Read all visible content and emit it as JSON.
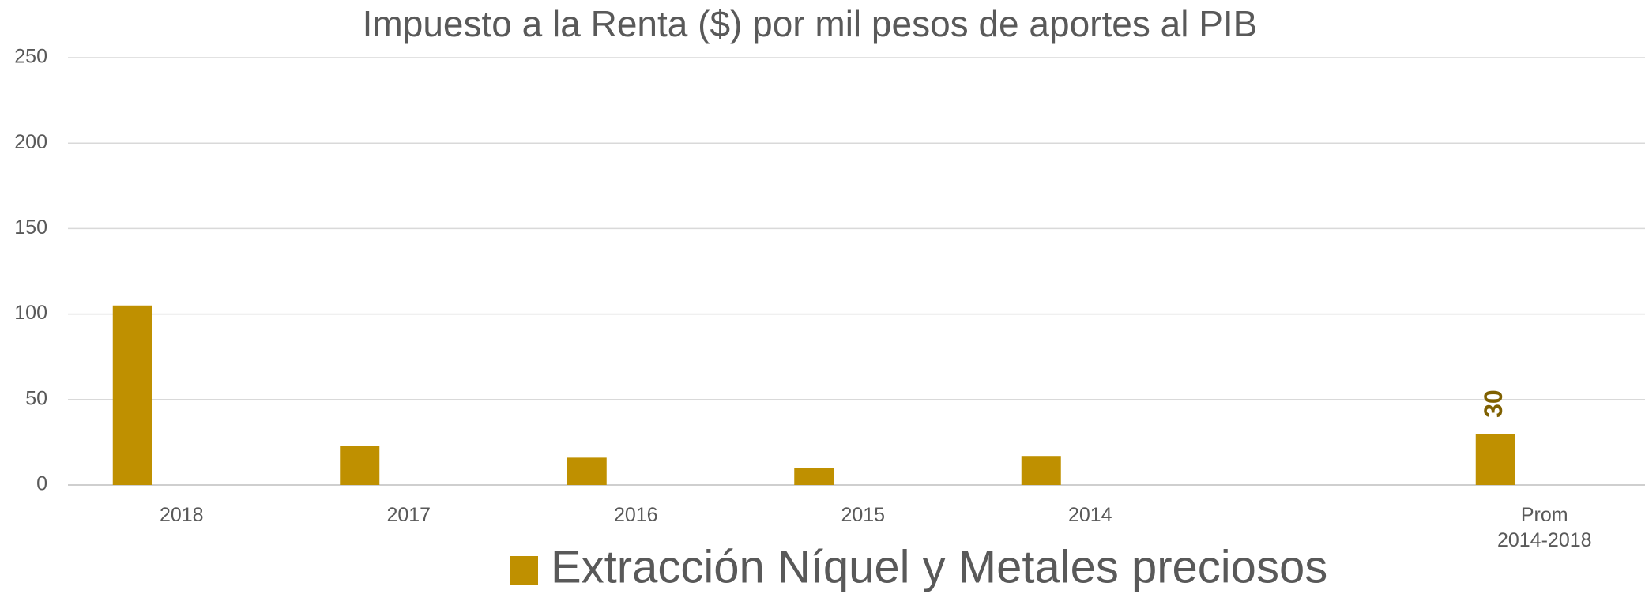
{
  "chart_data": {
    "type": "bar",
    "title": "Impuesto a la Renta ($) por mil pesos de aportes al PIB",
    "categories": [
      "2018",
      "2017",
      "2016",
      "2015",
      "2014",
      null,
      "Prom\n2014-2018"
    ],
    "series": [
      {
        "name": "Extracción Níquel y Metales preciosos",
        "color": "#bf9000",
        "values": [
          105,
          23,
          16,
          10,
          17,
          null,
          30
        ],
        "value_labels": [
          null,
          null,
          null,
          null,
          null,
          null,
          "30"
        ]
      }
    ],
    "ylim": [
      0,
      250
    ],
    "yticks": [
      0,
      50,
      100,
      150,
      200,
      250
    ],
    "grid": true,
    "legend": "bottom"
  }
}
